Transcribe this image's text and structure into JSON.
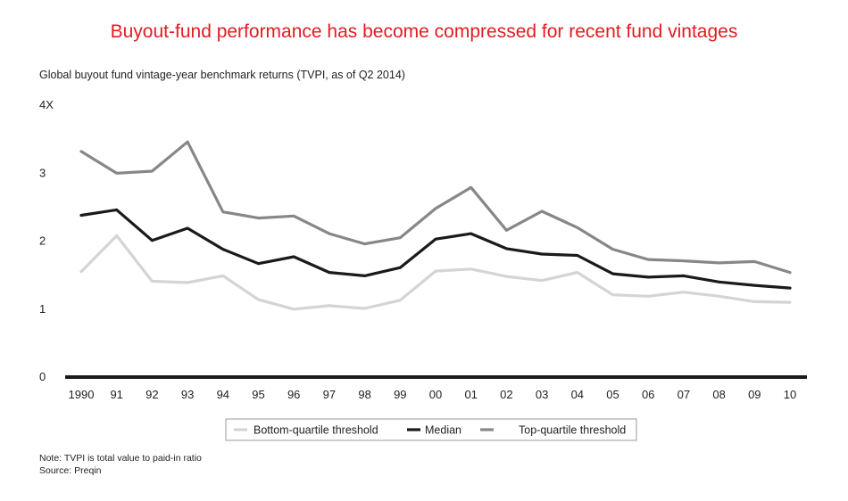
{
  "page": {
    "title": "Buyout-fund performance has become compressed for recent fund vintages",
    "subtitle": "Global buyout fund vintage-year benchmark returns (TVPI, as of Q2 2014)",
    "note": "Note: TVPI is total value to paid-in ratio",
    "source": "Source: Preqin"
  },
  "chart_data": {
    "type": "line",
    "title": "Buyout-fund performance has become compressed for recent fund vintages",
    "subtitle": "Global buyout fund vintage-year benchmark returns (TVPI, as of Q2 2014)",
    "x": [
      "1990",
      "91",
      "92",
      "93",
      "94",
      "95",
      "96",
      "97",
      "98",
      "99",
      "00",
      "01",
      "02",
      "03",
      "04",
      "05",
      "06",
      "07",
      "08",
      "09",
      "10"
    ],
    "y_ticks": [
      {
        "value": 0,
        "label": "0"
      },
      {
        "value": 1,
        "label": "1"
      },
      {
        "value": 2,
        "label": "2"
      },
      {
        "value": 3,
        "label": "3"
      },
      {
        "value": 4,
        "label": "4X"
      }
    ],
    "ylim": [
      0,
      4
    ],
    "grid": false,
    "legend_position": "bottom",
    "series": [
      {
        "name": "Bottom-quartile threshold",
        "color": "#d4d4d4",
        "values": [
          1.55,
          2.08,
          1.41,
          1.39,
          1.49,
          1.14,
          1.0,
          1.05,
          1.01,
          1.13,
          1.56,
          1.59,
          1.48,
          1.42,
          1.54,
          1.21,
          1.19,
          1.25,
          1.19,
          1.11,
          1.1
        ]
      },
      {
        "name": "Median",
        "color": "#1a1a1a",
        "values": [
          2.38,
          2.46,
          2.01,
          2.19,
          1.88,
          1.67,
          1.77,
          1.54,
          1.49,
          1.61,
          2.03,
          2.11,
          1.89,
          1.81,
          1.79,
          1.52,
          1.47,
          1.49,
          1.4,
          1.35,
          1.31
        ]
      },
      {
        "name": "Top-quartile threshold",
        "color": "#878787",
        "values": [
          3.32,
          3.0,
          3.03,
          3.46,
          2.43,
          2.34,
          2.37,
          2.11,
          1.96,
          2.05,
          2.48,
          2.79,
          2.16,
          2.44,
          2.2,
          1.88,
          1.73,
          1.71,
          1.68,
          1.7,
          1.54
        ]
      }
    ]
  }
}
